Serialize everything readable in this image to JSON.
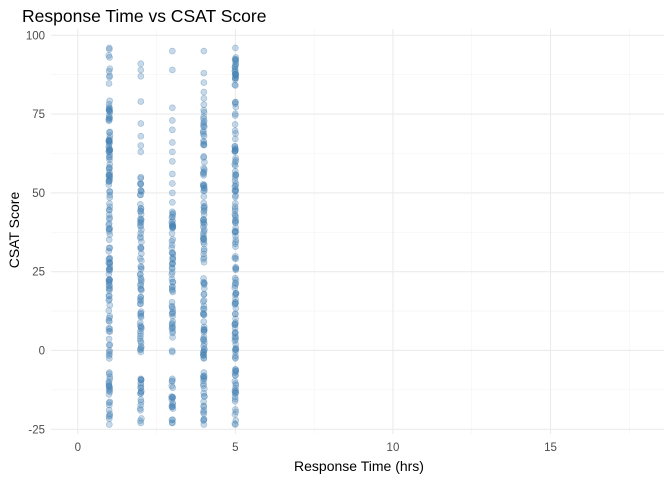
{
  "chart_data": {
    "type": "scatter",
    "title": "Response Time vs CSAT Score",
    "xlabel": "Response Time (hrs)",
    "ylabel": "CSAT Score",
    "xlim": [
      -0.85,
      18.6
    ],
    "ylim": [
      -26.5,
      102
    ],
    "x_ticks": [
      0,
      5,
      10,
      15
    ],
    "x_tick_labels": [
      "0",
      "5",
      "10",
      "15"
    ],
    "y_ticks": [
      -25,
      0,
      25,
      50,
      75,
      100
    ],
    "y_tick_labels": [
      "-25",
      "0",
      "25",
      "50",
      "75",
      "100"
    ],
    "grid": true,
    "legend": "none",
    "point_color": "#4682b4",
    "point_alpha": 0.3,
    "series": [
      {
        "x": 1,
        "segments": [
          [
            -23.5,
            -7
          ],
          [
            -2.5,
            96
          ]
        ],
        "outliers": []
      },
      {
        "x": 2,
        "segments": [
          [
            -23,
            -9
          ],
          [
            -0.5,
            55
          ]
        ],
        "outliers": [
          63,
          65,
          68,
          72,
          79,
          87,
          89,
          91
        ]
      },
      {
        "x": 3,
        "segments": [
          [
            -23,
            -9
          ],
          [
            -0.5,
            44
          ]
        ],
        "outliers": [
          47,
          50,
          53,
          56,
          60,
          63,
          66,
          70,
          73,
          77,
          89,
          95
        ]
      },
      {
        "x": 4,
        "segments": [
          [
            -23.5,
            -7
          ],
          [
            -2.5,
            78
          ]
        ],
        "outliers": [
          80,
          82,
          85,
          88,
          95
        ]
      },
      {
        "x": 5,
        "segments": [
          [
            -23.5,
            -6
          ],
          [
            -2.5,
            96
          ]
        ],
        "outliers": []
      }
    ]
  }
}
